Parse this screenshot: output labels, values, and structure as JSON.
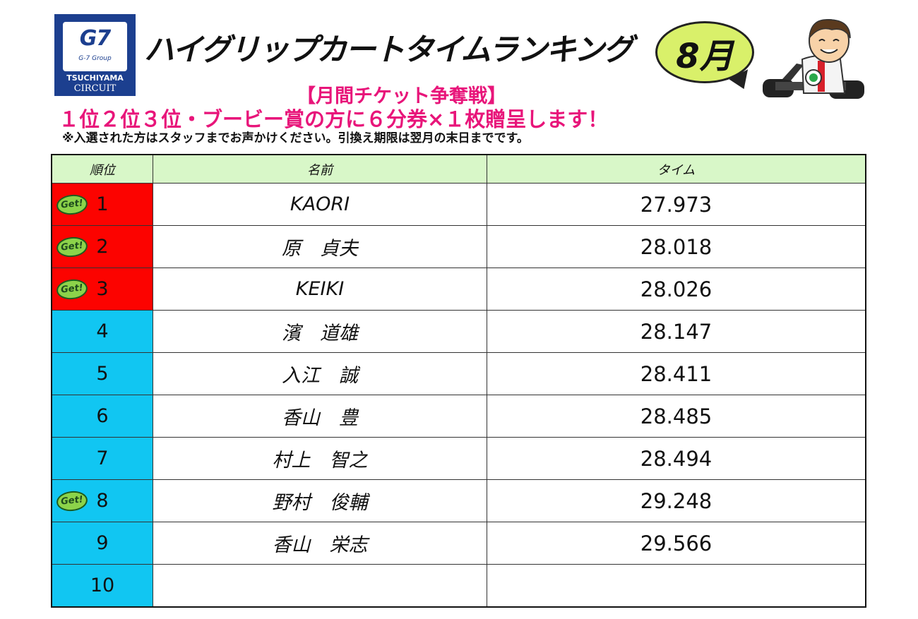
{
  "logo": {
    "brand": "G7",
    "group": "G-7 Group",
    "line1": "TSUCHIYAMA",
    "line2": "CIRCUIT"
  },
  "title": "ハイグリップカートタイムランキング",
  "month": "8月",
  "subtitle": "【月間チケット争奪戦】",
  "award_text": "１位２位３位・ブービー賞の方に６分券×１枚贈呈します！",
  "note": "※入選された方はスタッフまでお声かけください。引換え期限は翌月の末日までです。",
  "table": {
    "headers": {
      "rank": "順位",
      "name": "名前",
      "time": "タイム"
    },
    "badge_label": "Get!",
    "rows": [
      {
        "rank": "1",
        "name": "KAORI",
        "time": "27.973",
        "get": true,
        "color": "#fc0300"
      },
      {
        "rank": "2",
        "name": "原　貞夫",
        "time": "28.018",
        "get": true,
        "color": "#fc0300"
      },
      {
        "rank": "3",
        "name": "KEIKI",
        "time": "28.026",
        "get": true,
        "color": "#fc0300"
      },
      {
        "rank": "4",
        "name": "濱　道雄",
        "time": "28.147",
        "get": false,
        "color": "#11c6f2"
      },
      {
        "rank": "5",
        "name": "入江　誠",
        "time": "28.411",
        "get": false,
        "color": "#11c6f2"
      },
      {
        "rank": "6",
        "name": "香山　豊",
        "time": "28.485",
        "get": false,
        "color": "#11c6f2"
      },
      {
        "rank": "7",
        "name": "村上　智之",
        "time": "28.494",
        "get": false,
        "color": "#11c6f2"
      },
      {
        "rank": "8",
        "name": "野村　俊輔",
        "time": "29.248",
        "get": true,
        "color": "#11c6f2"
      },
      {
        "rank": "9",
        "name": "香山　栄志",
        "time": "29.566",
        "get": false,
        "color": "#11c6f2"
      },
      {
        "rank": "10",
        "name": "",
        "time": "",
        "get": false,
        "color": "#11c6f2"
      }
    ]
  },
  "colors": {
    "pink": "#e8157a",
    "header_bg": "#d8f7c8",
    "bubble": "#d9f06a",
    "logo_bg": "#1c3f8f"
  },
  "icons": [
    "g7-logo-icon",
    "speech-bubble-icon",
    "racer-character-icon",
    "get-badge-icon"
  ]
}
